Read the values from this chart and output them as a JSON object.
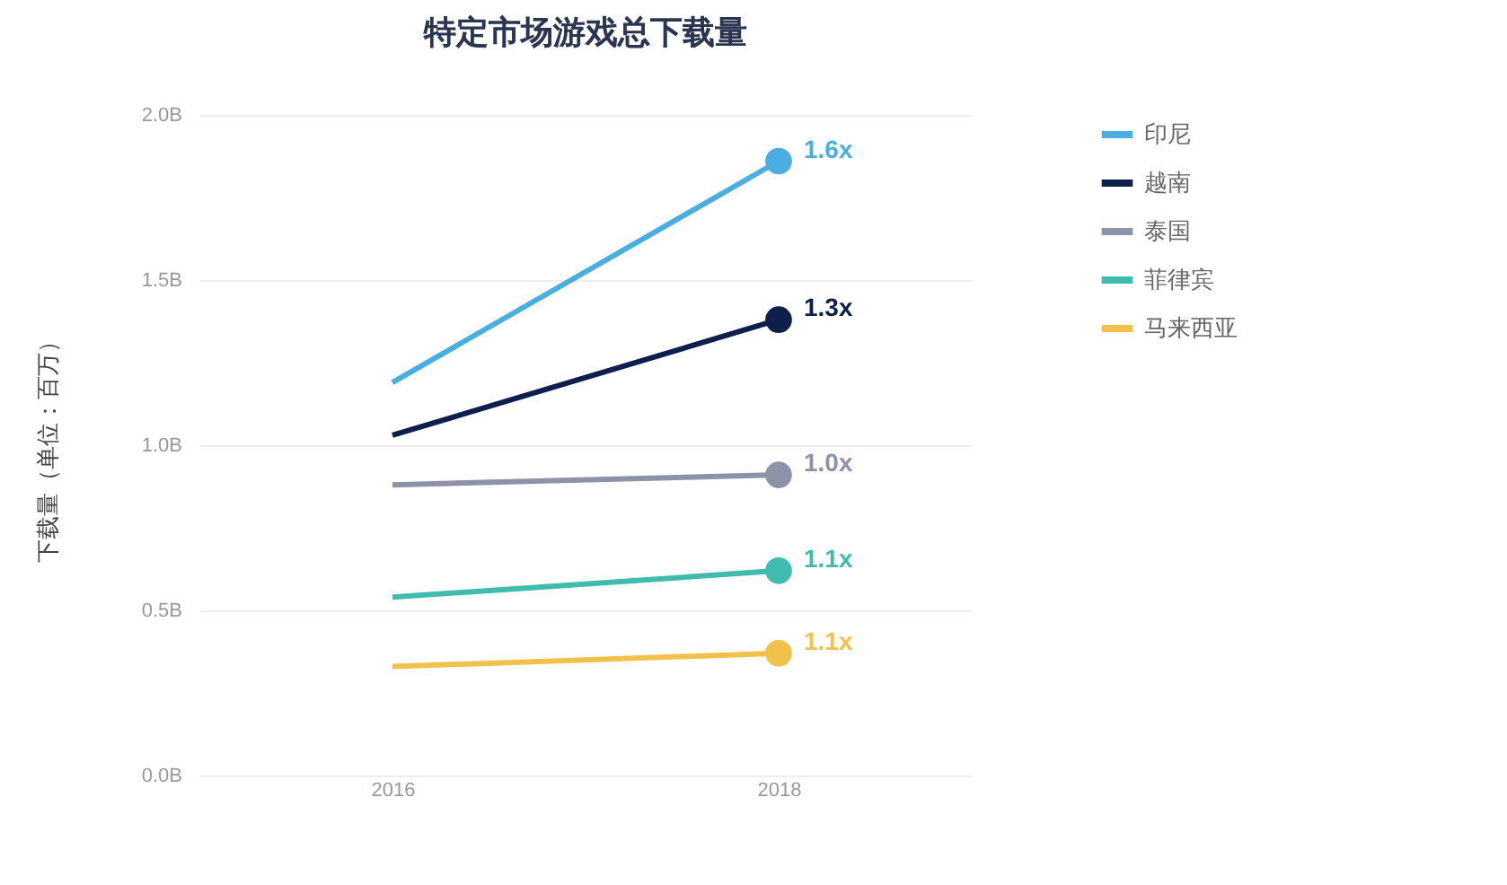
{
  "chart_data": {
    "type": "line",
    "title": "特定市场游戏总下载量",
    "ylabel": "下载量（单位：百万）",
    "categories": [
      "2016",
      "2018"
    ],
    "series": [
      {
        "name": "印尼",
        "color": "#4aaee0",
        "values": [
          1.19,
          1.86
        ]
      },
      {
        "name": "越南",
        "color": "#0f1f4b",
        "values": [
          1.03,
          1.38
        ]
      },
      {
        "name": "泰国",
        "color": "#8e92a8",
        "values": [
          0.88,
          0.91
        ]
      },
      {
        "name": "菲律宾",
        "color": "#3fbcae",
        "values": [
          0.54,
          0.62
        ]
      },
      {
        "name": "马来西亚",
        "color": "#f2c14a",
        "values": [
          0.33,
          0.37
        ]
      }
    ],
    "annotations": [
      {
        "text": "1.6x",
        "x": "2018",
        "y": 1.86
      },
      {
        "text": "1.3x",
        "x": "2018",
        "y": 1.38
      },
      {
        "text": "1.0x",
        "x": "2018",
        "y": 0.91
      },
      {
        "text": "1.1x",
        "x": "2018",
        "y": 0.62
      },
      {
        "text": "1.1x",
        "x": "2018",
        "y": 0.37
      }
    ],
    "ylim": [
      0,
      2
    ],
    "yticks": [
      {
        "value": 0,
        "label": "0.0B"
      },
      {
        "value": 0.5,
        "label": "0.5B"
      },
      {
        "value": 1,
        "label": "1.0B"
      },
      {
        "value": 1.5,
        "label": "1.5B"
      },
      {
        "value": 2,
        "label": "2.0B"
      }
    ],
    "grid": "y",
    "legend": "right",
    "line_style": "solid"
  }
}
